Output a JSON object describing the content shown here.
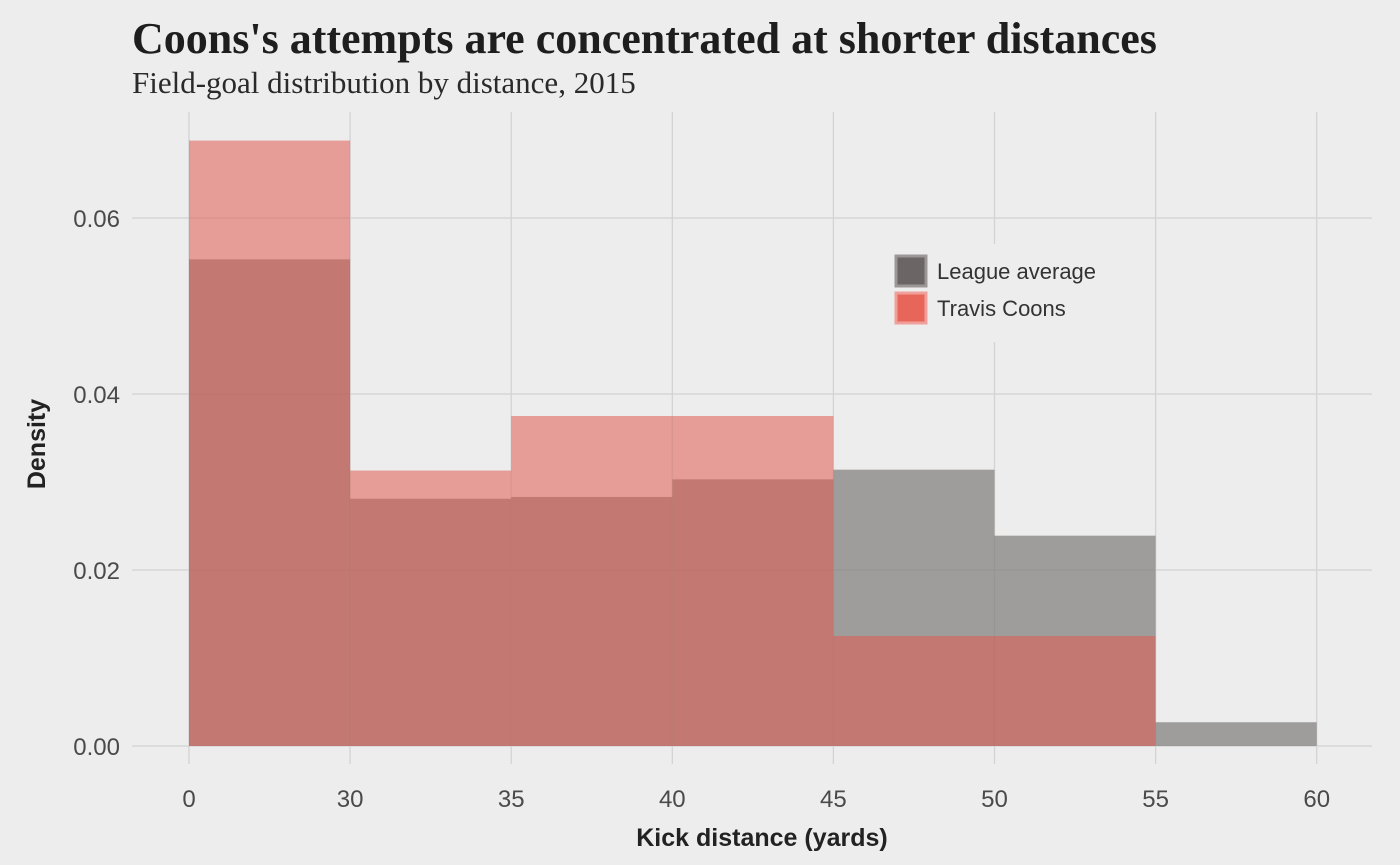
{
  "chart_data": {
    "type": "bar",
    "title": "Coons's attempts are concentrated at shorter distances",
    "subtitle": "Field-goal distribution by distance, 2015",
    "xlabel": "Kick distance (yards)",
    "ylabel": "Density",
    "categories": [
      "0–30",
      "30–35",
      "35–40",
      "40–45",
      "45–50",
      "50–55",
      "55–60"
    ],
    "x_tick_labels": [
      "0",
      "30",
      "35",
      "40",
      "45",
      "50",
      "55",
      "60"
    ],
    "y_tick_labels": [
      "0.00",
      "0.02",
      "0.04",
      "0.06"
    ],
    "y_ticks": [
      0,
      0.02,
      0.04,
      0.06
    ],
    "ylim": [
      0,
      0.0705
    ],
    "grid": true,
    "legend_position": "top-right",
    "series": [
      {
        "name": "League average",
        "color": "#6b6665",
        "values": [
          0.0553,
          0.0281,
          0.0283,
          0.0303,
          0.0314,
          0.0239,
          0.0027
        ]
      },
      {
        "name": "Travis Coons",
        "color": "#e8655a",
        "values": [
          0.0688,
          0.0313,
          0.0375,
          0.0375,
          0.0125,
          0.0125,
          0
        ]
      }
    ]
  }
}
